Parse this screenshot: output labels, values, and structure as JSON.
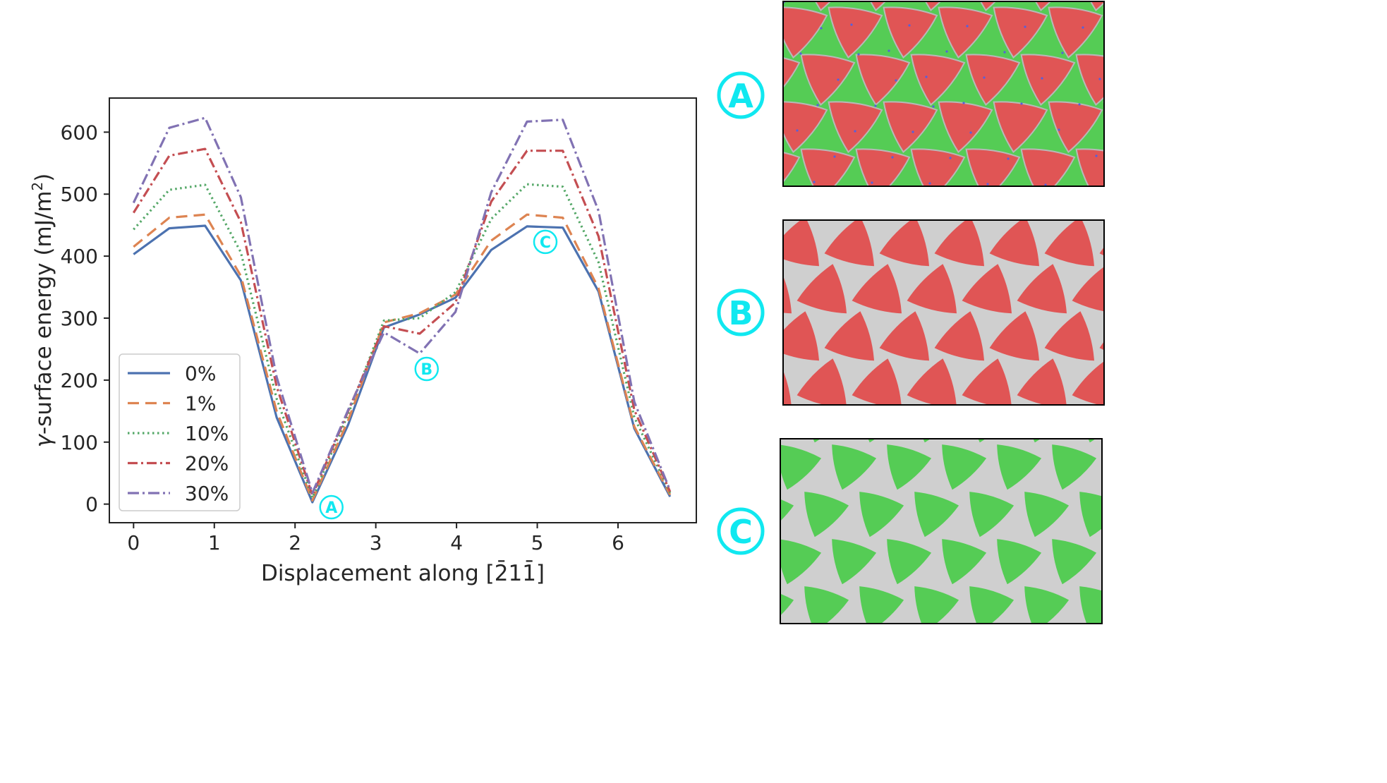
{
  "chart_data": {
    "type": "line",
    "xlabel": "Displacement along [2̄11̄]",
    "ylabel_prefix": "γ",
    "ylabel_main": "-surface energy (mJ/m",
    "ylabel_sup": "2",
    "ylabel_suffix": ")",
    "xlim": [
      -0.3,
      6.97
    ],
    "ylim": [
      -30,
      655
    ],
    "xticks": [
      0,
      1,
      2,
      3,
      4,
      5,
      6
    ],
    "yticks": [
      0,
      100,
      200,
      300,
      400,
      500,
      600
    ],
    "x": [
      0,
      0.443,
      0.886,
      1.329,
      1.772,
      2.215,
      2.658,
      3.101,
      3.544,
      3.987,
      4.43,
      4.873,
      5.316,
      5.759,
      6.202,
      6.645
    ],
    "series": [
      {
        "name": "0%",
        "color": "#4c72b0",
        "dash": "none",
        "values": [
          403,
          445,
          449,
          361,
          140,
          3,
          128,
          285,
          306,
          333,
          410,
          448,
          446,
          343,
          122,
          12
        ]
      },
      {
        "name": "1%",
        "color": "#dd8452",
        "dash": "16,9",
        "values": [
          415,
          462,
          467,
          368,
          150,
          6,
          135,
          293,
          308,
          338,
          425,
          467,
          462,
          348,
          125,
          15
        ]
      },
      {
        "name": "10%",
        "color": "#55a868",
        "dash": "2.5,4.5",
        "values": [
          443,
          507,
          515,
          406,
          170,
          10,
          145,
          296,
          300,
          342,
          460,
          516,
          512,
          390,
          140,
          18
        ]
      },
      {
        "name": "20%",
        "color": "#c44e52",
        "dash": "14,5,3,5",
        "values": [
          470,
          562,
          573,
          455,
          190,
          14,
          150,
          287,
          275,
          325,
          488,
          570,
          570,
          432,
          152,
          20
        ]
      },
      {
        "name": "30%",
        "color": "#8172b3",
        "dash": "16,5,3,5",
        "values": [
          486,
          607,
          623,
          495,
          205,
          18,
          152,
          277,
          243,
          310,
          503,
          617,
          620,
          473,
          165,
          22
        ]
      }
    ],
    "legend_position": "lower-left",
    "annotations": [
      {
        "text": "A",
        "x": 2.45,
        "y": -5
      },
      {
        "text": "B",
        "x": 3.63,
        "y": 218
      },
      {
        "text": "C",
        "x": 5.1,
        "y": 423
      }
    ]
  },
  "panels": [
    {
      "label": "A",
      "fill_color": "#55cc55",
      "shape_color": "#e05555",
      "dots": true
    },
    {
      "label": "B",
      "fill_color": "#cfcfcf",
      "shape_color": "#e05555",
      "dots": false
    },
    {
      "label": "C",
      "fill_color": "#cfcfcf",
      "shape_color": "#55cc55",
      "dots": false
    }
  ],
  "annotation_color": "#10e8f0"
}
